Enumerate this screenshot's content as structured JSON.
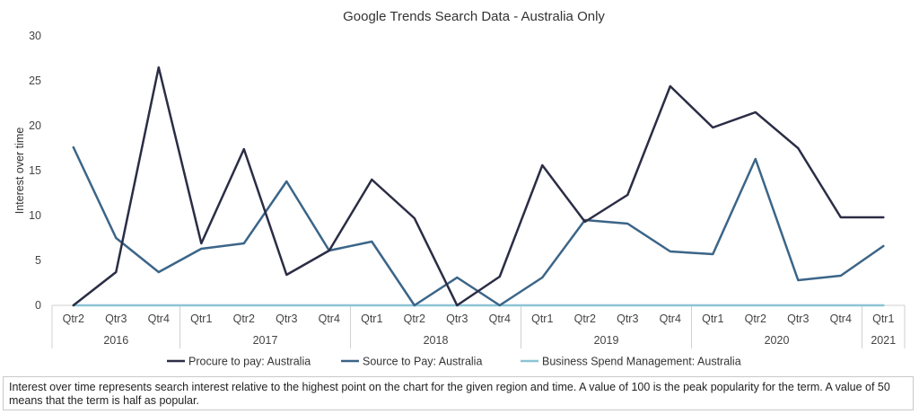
{
  "chart_data": {
    "type": "line",
    "title": "Google Trends Search Data - Australia Only",
    "ylabel": "Interest over time",
    "xlabel": "",
    "ylim": [
      0,
      30
    ],
    "y_ticks": [
      "0",
      "5",
      "10",
      "15",
      "20",
      "25",
      "30"
    ],
    "grid": false,
    "legend_position": "bottom",
    "categories": [
      "Qtr2",
      "Qtr3",
      "Qtr4",
      "Qtr1",
      "Qtr2",
      "Qtr3",
      "Qtr4",
      "Qtr1",
      "Qtr2",
      "Qtr3",
      "Qtr4",
      "Qtr1",
      "Qtr2",
      "Qtr3",
      "Qtr4",
      "Qtr1",
      "Qtr2",
      "Qtr3",
      "Qtr4",
      "Qtr1"
    ],
    "year_groups": [
      {
        "label": "2016",
        "span": 3
      },
      {
        "label": "2017",
        "span": 4
      },
      {
        "label": "2018",
        "span": 4
      },
      {
        "label": "2019",
        "span": 4
      },
      {
        "label": "2020",
        "span": 4
      },
      {
        "label": "2021",
        "span": 1
      }
    ],
    "series": [
      {
        "name": "Procure to pay: Australia",
        "color": "#2b2d45",
        "values": [
          0,
          3.7,
          26.5,
          6.9,
          17.4,
          3.4,
          6.1,
          14,
          9.7,
          0,
          3.2,
          15.6,
          9.3,
          12.3,
          24.4,
          19.8,
          21.5,
          17.5,
          9.8,
          9.8
        ]
      },
      {
        "name": "Source to Pay: Australia",
        "color": "#3b6588",
        "values": [
          17.6,
          7.5,
          3.7,
          6.3,
          6.9,
          13.8,
          6.1,
          7.1,
          0,
          3.1,
          0,
          3.1,
          9.5,
          9.1,
          6,
          5.7,
          16.3,
          2.8,
          3.3,
          6.6
        ]
      },
      {
        "name": "Business Spend Management: Australia",
        "color": "#8cc3d6",
        "values": [
          0,
          0,
          0,
          0,
          0,
          0,
          0,
          0,
          0,
          0,
          0,
          0,
          0,
          0,
          0,
          0,
          0,
          0,
          0,
          0
        ]
      }
    ]
  },
  "note": "Interest over time represents search interest relative to the highest point on the chart for the given region and time. A value of 100 is the peak popularity for the term. A value of 50 means that the term is half as popular."
}
